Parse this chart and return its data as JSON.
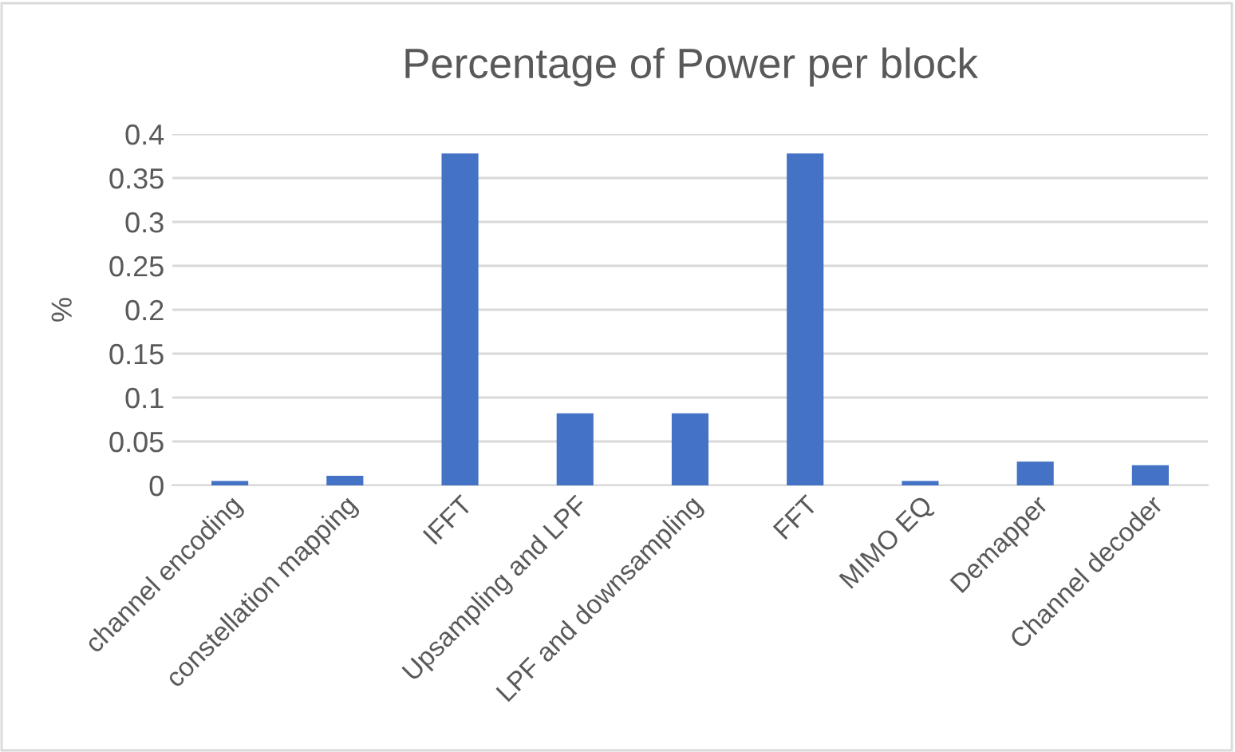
{
  "chart_data": {
    "type": "bar",
    "title": "Percentage of Power per block",
    "ylabel": "%",
    "categories": [
      "channel encoding",
      "constellation mapping",
      "IFFT",
      "Upsampling and LPF",
      "LPF and downsampling",
      "FFT",
      "MIMO EQ",
      "Demapper",
      "Channel decoder"
    ],
    "values": [
      0.005,
      0.011,
      0.378,
      0.082,
      0.082,
      0.378,
      0.005,
      0.027,
      0.023
    ],
    "color": "#4472c4",
    "ylim": [
      0,
      0.4
    ],
    "yticks": [
      0,
      0.05,
      0.1,
      0.15,
      0.2,
      0.25,
      0.3,
      0.35,
      0.4
    ],
    "grid": "y"
  }
}
